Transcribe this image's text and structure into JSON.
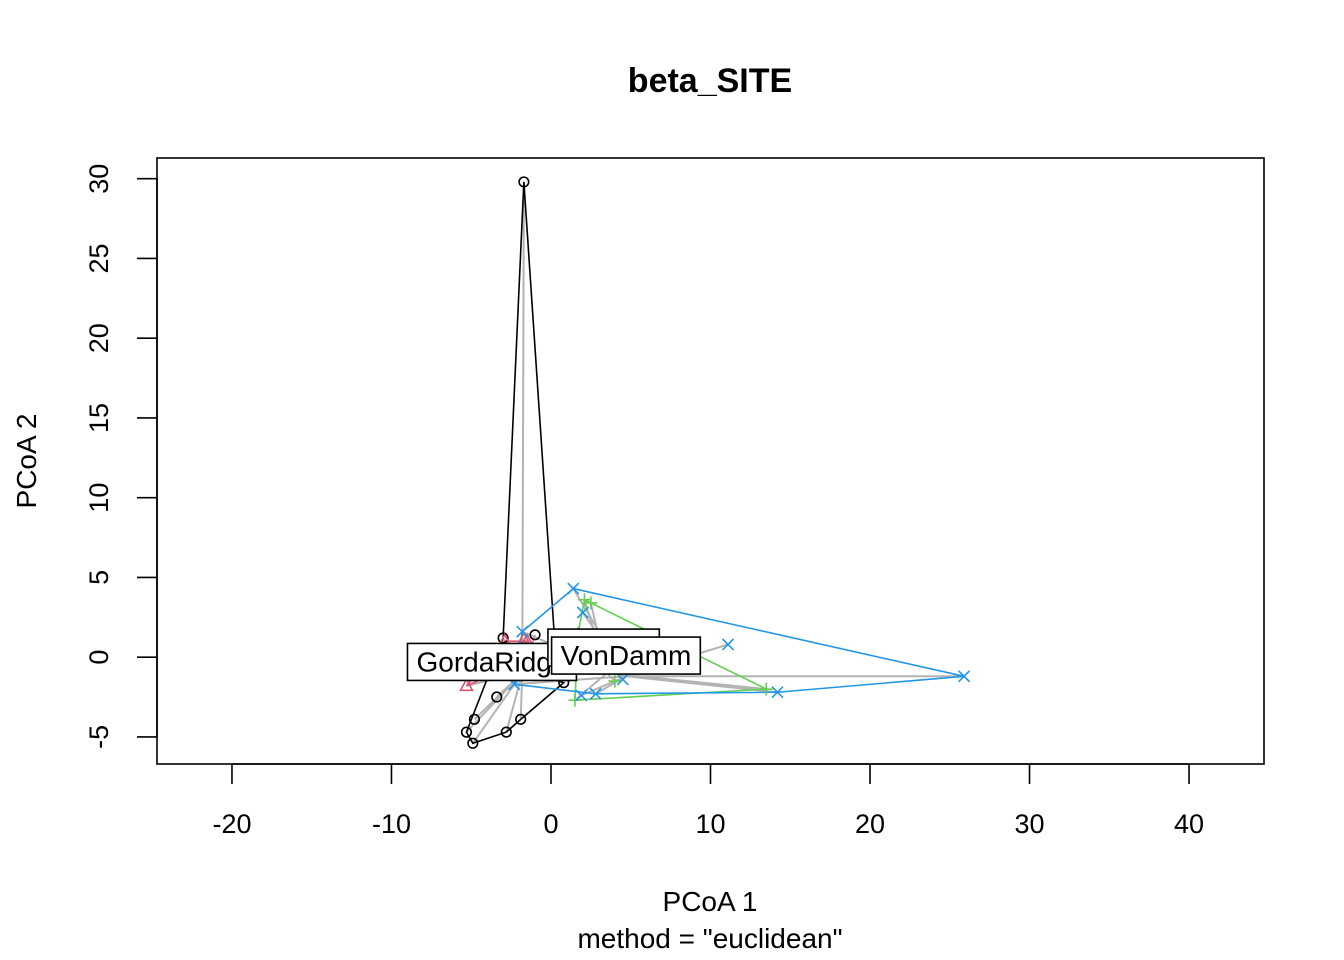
{
  "chart_data": {
    "type": "scatter",
    "title": "beta_SITE",
    "xlabel": "PCoA 1",
    "subtitle": "method = \"euclidean\"",
    "ylabel": "PCoA 2",
    "xlim": [
      -24.7,
      44.7
    ],
    "ylim": [
      -6.7,
      31.3
    ],
    "xticks": [
      -20,
      -10,
      0,
      10,
      20,
      30,
      40
    ],
    "yticks": [
      -5,
      0,
      5,
      10,
      15,
      20,
      25,
      30
    ],
    "grid": false,
    "legend": "none",
    "spider_color": "#b3b3b3",
    "groups": [
      {
        "name": "GordaRidge",
        "color": "#000000",
        "marker": "circle",
        "centroid": [
          -1.8,
          -1.0
        ],
        "label_pos": [
          -3.7,
          -0.3
        ],
        "points": [
          [
            -1.7,
            29.8
          ],
          [
            -3.0,
            1.2
          ],
          [
            -1.0,
            1.4
          ],
          [
            0.8,
            -1.6
          ],
          [
            -3.4,
            -2.5
          ],
          [
            -5.3,
            -4.7
          ],
          [
            -4.8,
            -3.9
          ],
          [
            -4.9,
            -5.4
          ],
          [
            -2.8,
            -4.7
          ],
          [
            -1.9,
            -3.9
          ]
        ],
        "hull": [
          [
            -1.7,
            29.8
          ],
          [
            -3.0,
            1.2
          ],
          [
            -5.3,
            -4.7
          ],
          [
            -4.9,
            -5.4
          ],
          [
            -2.8,
            -4.7
          ],
          [
            -1.9,
            -3.9
          ],
          [
            0.8,
            -1.6
          ],
          [
            0.5,
            -1.5
          ],
          [
            0.3,
            0.0
          ]
        ]
      },
      {
        "name": "Piccard",
        "color": "#DF536B",
        "marker": "triangle",
        "centroid": [
          -2.0,
          -1.0
        ],
        "label_pos": [
          3.3,
          0.6
        ],
        "points": [
          [
            -5.3,
            -1.8
          ],
          [
            -2.9,
            1.0
          ],
          [
            -1.7,
            1.1
          ],
          [
            -1.5,
            1.0
          ],
          [
            -3.5,
            -1.0
          ]
        ],
        "hull": [
          [
            -5.3,
            -1.8
          ],
          [
            -2.9,
            1.0
          ],
          [
            -1.5,
            1.0
          ],
          [
            -3.5,
            -1.0
          ]
        ]
      },
      {
        "name": "",
        "color": "#61D04F",
        "marker": "plus",
        "centroid": [
          3.5,
          -1.0
        ],
        "label_pos": null,
        "points": [
          [
            1.5,
            -2.7
          ],
          [
            1.7,
            1.5
          ],
          [
            2.1,
            3.6
          ],
          [
            2.5,
            3.4
          ],
          [
            13.5,
            -2.0
          ],
          [
            4.0,
            -1.5
          ]
        ],
        "hull": [
          [
            1.5,
            -2.7
          ],
          [
            1.7,
            1.5
          ],
          [
            2.1,
            3.6
          ],
          [
            2.5,
            3.4
          ],
          [
            13.5,
            -2.0
          ]
        ]
      },
      {
        "name": "VonDamm",
        "color": "#2297E6",
        "marker": "cross",
        "centroid": [
          4.7,
          -1.2
        ],
        "label_pos": [
          4.7,
          0.1
        ],
        "points": [
          [
            1.4,
            4.3
          ],
          [
            2.0,
            2.8
          ],
          [
            -1.8,
            1.6
          ],
          [
            25.9,
            -1.2
          ],
          [
            14.2,
            -2.2
          ],
          [
            11.1,
            0.8
          ],
          [
            2.8,
            -2.3
          ],
          [
            1.9,
            -2.4
          ],
          [
            -2.3,
            -1.7
          ],
          [
            4.5,
            -1.4
          ]
        ],
        "hull": [
          [
            1.4,
            4.3
          ],
          [
            25.9,
            -1.2
          ],
          [
            14.2,
            -2.2
          ],
          [
            2.8,
            -2.3
          ],
          [
            -2.3,
            -1.7
          ],
          [
            -1.8,
            1.6
          ]
        ]
      }
    ]
  }
}
